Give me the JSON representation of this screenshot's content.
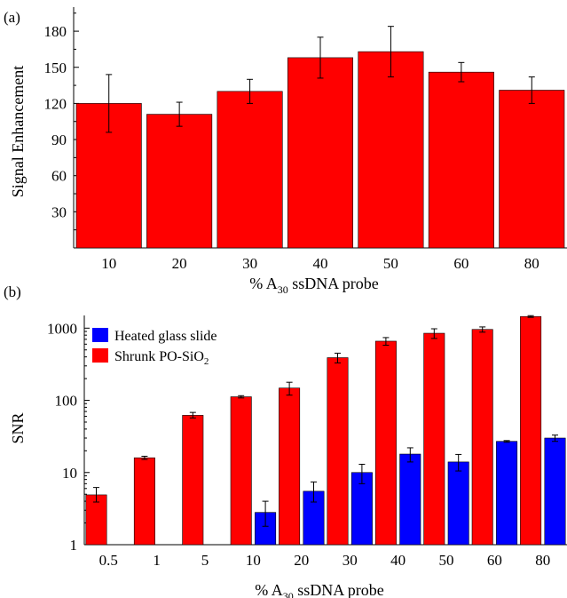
{
  "chart_data": [
    {
      "type": "bar",
      "panel_label": "(a)",
      "ylabel": "Signal Enhancement",
      "xlabel_parts": [
        "% A",
        "30",
        " ssDNA probe"
      ],
      "categories": [
        "10",
        "20",
        "30",
        "40",
        "50",
        "60",
        "80"
      ],
      "values": [
        120,
        111,
        130,
        158,
        163,
        146,
        131
      ],
      "errors": [
        24,
        10,
        10,
        17,
        21,
        8,
        11
      ],
      "ylim": [
        0,
        200
      ],
      "yticks": [
        30,
        60,
        90,
        120,
        150,
        180
      ],
      "ytick_labels": [
        "30",
        "60",
        "90",
        "120",
        "150",
        "180"
      ],
      "grid": false,
      "bar_color": "#ff0000"
    },
    {
      "type": "bar",
      "panel_label": "(b)",
      "ylabel": "SNR",
      "xlabel_parts": [
        "% A",
        "30",
        " ssDNA probe"
      ],
      "yscale": "log",
      "ylim": [
        1,
        1500
      ],
      "yticks": [
        1,
        10,
        100,
        1000
      ],
      "ytick_labels": [
        "1",
        "10",
        "100",
        "1000"
      ],
      "grid": false,
      "legend_position": "top-left",
      "categories": [
        "0.5",
        "1",
        "5",
        "10",
        "20",
        "30",
        "40",
        "50",
        "60",
        "80"
      ],
      "series": [
        {
          "name": "Heated glass slide",
          "color": "#0000ff",
          "values": [
            null,
            null,
            null,
            2.8,
            5.5,
            10,
            18,
            14,
            27,
            30
          ],
          "errors_low": [
            null,
            null,
            null,
            1.0,
            1.6,
            3,
            4,
            3.5,
            0.7,
            3
          ],
          "errors_high": [
            null,
            null,
            null,
            1.2,
            1.9,
            3,
            4,
            3.8,
            0.7,
            3
          ]
        },
        {
          "name": "Shrunk PO-SiO",
          "name_subscript": "2",
          "color": "#ff0000",
          "values": [
            4.9,
            16,
            62,
            112,
            148,
            390,
            660,
            850,
            960,
            1450
          ],
          "errors_low": [
            1.0,
            0.8,
            5,
            4,
            30,
            60,
            80,
            130,
            80,
            40
          ],
          "errors_high": [
            1.3,
            0.8,
            6,
            4,
            30,
            60,
            80,
            130,
            80,
            40
          ]
        }
      ]
    }
  ]
}
